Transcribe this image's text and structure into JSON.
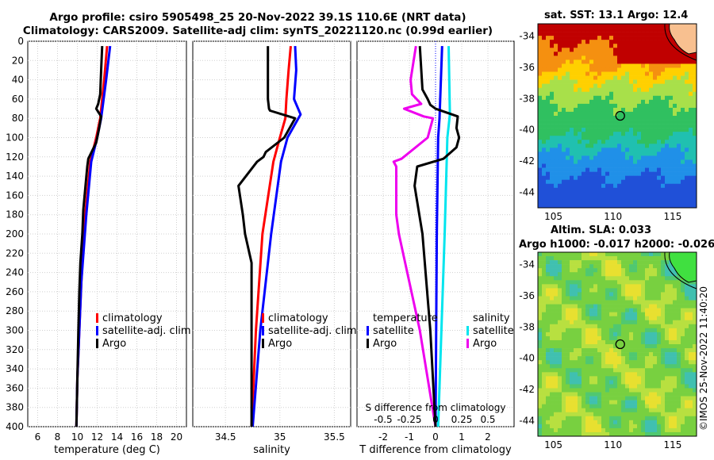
{
  "titles": {
    "line1": "Argo profile: csiro 5905498_25 20-Nov-2022 39.1S 110.6E (NRT data)",
    "line2": "Climatology: CARS2009. Satellite-adj clim: synTS_20221120.nc (0.99d earlier)"
  },
  "colors": {
    "climatology": "#ff0000",
    "satellite": "#0000ff",
    "argo": "#000000",
    "salinity_satellite": "#00e5ee",
    "salinity_argo": "#ee00ee"
  },
  "maps": {
    "sst_title": "sat. SST: 13.1 Argo: 12.4",
    "sla_title1": "Altim. SLA: 0.033",
    "sla_title2": "Argo h1000: -0.017 h2000: -0.026",
    "lat_ticks": [
      "-34",
      "-36",
      "-38",
      "-40",
      "-42",
      "-44"
    ],
    "lon_ticks": [
      "105",
      "110",
      "115"
    ]
  },
  "stamp": "©IMOS 25-Nov-2022 11:40:20",
  "chart_data": [
    {
      "type": "line",
      "id": "temperature",
      "xlabel": "temperature (deg C)",
      "xlim": [
        5,
        21
      ],
      "ylim": [
        0,
        400
      ],
      "xticks": [
        "6",
        "8",
        "10",
        "12",
        "14",
        "16",
        "18",
        "20"
      ],
      "yticks": [
        "0",
        "20",
        "40",
        "60",
        "80",
        "100",
        "120",
        "140",
        "160",
        "180",
        "200",
        "220",
        "240",
        "260",
        "280",
        "300",
        "320",
        "340",
        "360",
        "380",
        "400"
      ],
      "legend": [
        "climatology",
        "satellite-adj. clim",
        "Argo"
      ],
      "series": [
        {
          "name": "climatology",
          "depth": [
            5,
            40,
            80,
            100,
            125,
            180,
            250,
            300,
            350,
            400
          ],
          "values": [
            13.0,
            12.7,
            12.3,
            11.9,
            11.3,
            10.8,
            10.4,
            10.2,
            10.0,
            9.9
          ]
        },
        {
          "name": "satellite-adj. clim",
          "depth": [
            5,
            40,
            80,
            100,
            125,
            180,
            250,
            300,
            350,
            400
          ],
          "values": [
            13.3,
            12.9,
            12.4,
            12.0,
            11.4,
            10.9,
            10.4,
            10.2,
            10.0,
            9.9
          ]
        },
        {
          "name": "Argo",
          "depth": [
            5,
            30,
            55,
            65,
            70,
            78,
            90,
            105,
            122,
            130,
            175,
            200,
            230,
            260,
            300,
            350,
            400
          ],
          "values": [
            12.5,
            12.4,
            12.3,
            12.1,
            11.9,
            12.4,
            12.2,
            11.9,
            11.1,
            11.0,
            10.6,
            10.5,
            10.3,
            10.2,
            10.1,
            10.0,
            9.9
          ]
        }
      ]
    },
    {
      "type": "line",
      "id": "salinity",
      "xlabel": "salinity",
      "xlim": [
        34.2,
        35.65
      ],
      "ylim": [
        0,
        400
      ],
      "xticks": [
        "34.5",
        "35",
        "35.5"
      ],
      "legend": [
        "climatology",
        "satellite-adj. clim",
        "Argo"
      ],
      "series": [
        {
          "name": "climatology",
          "depth": [
            5,
            30,
            60,
            80,
            100,
            125,
            200,
            300,
            400
          ],
          "values": [
            35.1,
            35.08,
            35.06,
            35.05,
            35.0,
            34.94,
            34.84,
            34.78,
            34.74
          ],
          "label": "climatology"
        },
        {
          "name": "satellite-adj. clim",
          "depth": [
            5,
            30,
            60,
            76,
            100,
            125,
            200,
            300,
            400
          ],
          "values": [
            35.14,
            35.15,
            35.13,
            35.19,
            35.07,
            35.01,
            34.92,
            34.82,
            34.75
          ],
          "label": "satellite-adj. clim"
        },
        {
          "name": "Argo",
          "depth": [
            5,
            60,
            70,
            72,
            80,
            100,
            115,
            120,
            125,
            150,
            180,
            200,
            230,
            300,
            400
          ],
          "values": [
            34.89,
            34.89,
            34.9,
            34.91,
            35.14,
            35.04,
            34.87,
            34.85,
            34.79,
            34.62,
            34.66,
            34.68,
            34.74,
            34.74,
            34.74
          ],
          "label": "Argo"
        }
      ]
    },
    {
      "type": "line",
      "id": "difference",
      "xlabel": "T difference from climatology",
      "top_axis_label": "S difference from climatology",
      "xlim": [
        -3,
        3
      ],
      "ylim": [
        0,
        400
      ],
      "xticks": [
        "-2",
        "-1",
        "0",
        "1",
        "2"
      ],
      "top_ticks": [
        "-0.5",
        "-0.25",
        "0",
        "0.25",
        "0.5"
      ],
      "legend_headers": [
        "temperature",
        "salinity"
      ],
      "legend": [
        "satellite",
        "Argo",
        "satellite",
        "Argo"
      ],
      "series": [
        {
          "name": "T satellite",
          "depth": [
            5,
            80,
            100,
            200,
            400
          ],
          "values": [
            0.25,
            0.15,
            0.1,
            0.05,
            0.0
          ]
        },
        {
          "name": "S satellite",
          "depth": [
            5,
            76,
            100,
            200,
            400
          ],
          "values": [
            0.5,
            0.55,
            0.45,
            0.35,
            0.1
          ]
        },
        {
          "name": "S Argo",
          "depth": [
            5,
            40,
            55,
            65,
            70,
            78,
            80,
            100,
            122,
            125,
            130,
            180,
            200,
            300,
            400
          ],
          "values": [
            -0.75,
            -0.95,
            -0.9,
            -0.55,
            -1.2,
            -0.45,
            -0.1,
            -0.3,
            -1.3,
            -1.6,
            -1.5,
            -1.5,
            -1.4,
            -0.6,
            0.0
          ]
        },
        {
          "name": "T Argo",
          "depth": [
            5,
            50,
            60,
            66,
            70,
            78,
            90,
            100,
            110,
            122,
            130,
            150,
            200,
            300,
            400
          ],
          "values": [
            -0.6,
            -0.5,
            -0.3,
            -0.2,
            0.0,
            0.85,
            0.8,
            0.9,
            0.8,
            0.3,
            -0.7,
            -0.8,
            -0.5,
            -0.2,
            0.0
          ]
        }
      ]
    }
  ]
}
